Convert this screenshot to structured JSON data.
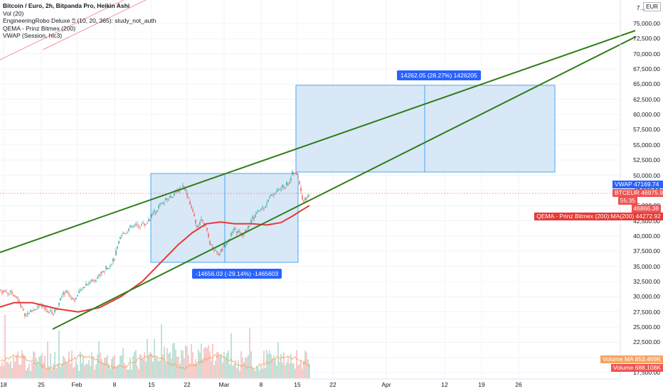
{
  "legend": {
    "title": "Bitcoin / Euro, 2h, Bitpanda Pro, Heikin Ashi",
    "vol": "Vol (20)",
    "robo": "EngineeringRobo Deluxe ⍰ (10, 20, 365): study_not_auth",
    "qema": "QEMA - Prinz Bitmex (200)",
    "vwap": "VWAP (Session, hlc3)"
  },
  "currency_button": "EUR",
  "price_axis": [
    "75,000.00",
    "72,500.00",
    "70,000.00",
    "67,500.00",
    "65,000.00",
    "62,500.00",
    "60,000.00",
    "57,500.00",
    "55,000.00",
    "52,500.00",
    "50,000.00",
    "47,500.00",
    "45,000.00",
    "42,500.00",
    "40,000.00",
    "37,500.00",
    "35,000.00",
    "32,500.00",
    "30,000.00",
    "27,500.00",
    "25,000.00",
    "22,500.00",
    "20,000.00",
    "17,500.00"
  ],
  "price_axis_top": "7…",
  "time_axis": [
    "18",
    "25",
    "Feb",
    "8",
    "15",
    "22",
    "Mar",
    "8",
    "15",
    "22",
    "Apr",
    "12",
    "19",
    "26"
  ],
  "tags": {
    "vwap_label": "VWAP",
    "vwap_value": "47169.74",
    "btceur_label": "BTCEUR",
    "btceur_value": "46975.94",
    "countdown": "55:35",
    "price2": "46866.38",
    "qema_label": "QEMA - Prinz Bitmex (200):MA(200)",
    "qema_value": "44272.92",
    "volma_label": "Volume MA",
    "volma_value": "853.469K",
    "volume_label": "Volume",
    "volume_value": "688.108K"
  },
  "measure_up": "14262.05 (28.27%) 1426205",
  "measure_down": "-14656.03 (-29.14%) -1465603",
  "colors": {
    "up": "#26a69a",
    "down": "#ef5350",
    "trend": "#2e7d15",
    "qema": "#e53935",
    "vwap": "#2962ff",
    "box_fill": "#cfe2f5",
    "box_stroke": "#2196f3"
  }
}
